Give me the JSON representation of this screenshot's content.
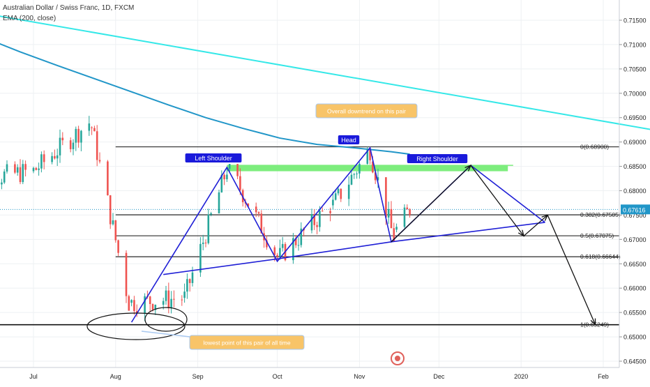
{
  "header": {
    "symbol_title": "Australian Dollar / Swiss Franc, 1D, FXCM",
    "indicator": "EMA (200, close)"
  },
  "colors": {
    "background": "#ffffff",
    "grid": "#eef0f3",
    "candle_up": "#26a69a",
    "candle_down": "#ef5350",
    "ema": "#2196c8",
    "trendline": "#35e8e8",
    "pattern_lines": "#1f1fd6",
    "projection": "#111111",
    "neckline_zone": "#7ded7d",
    "label_bg": "#1a1adb",
    "note_bg": "#f8c468",
    "note_border": "#a8c8f0",
    "last_price_bg": "#2196c8"
  },
  "chart_data": {
    "type": "candlestick",
    "title": "Australian Dollar / Swiss Franc, 1D, FXCM",
    "x_axis": {
      "ticks": [
        "Jul",
        "Aug",
        "Sep",
        "Oct",
        "Nov",
        "Dec",
        "2020",
        "Feb"
      ]
    },
    "y_axis": {
      "range": [
        0.644,
        0.7175
      ],
      "ticks": [
        "0.71500",
        "0.71000",
        "0.70500",
        "0.70000",
        "0.69500",
        "0.69000",
        "0.68500",
        "0.68000",
        "0.67500",
        "0.67000",
        "0.66500",
        "0.66000",
        "0.65500",
        "0.65000",
        "0.64500"
      ]
    },
    "last_price": "0.67616",
    "ema_200": {
      "name": "EMA (200, close)",
      "points": [
        [
          "Jun 12",
          0.7115
        ],
        [
          "Jun 26",
          0.7085
        ],
        [
          "Jul 10",
          0.7057
        ],
        [
          "Jul 24",
          0.703
        ],
        [
          "Aug 7",
          0.7003
        ],
        [
          "Aug 21",
          0.6976
        ],
        [
          "Sep 4",
          0.695
        ],
        [
          "Sep 18",
          0.6928
        ],
        [
          "Oct 2",
          0.6908
        ],
        [
          "Oct 16",
          0.6895
        ],
        [
          "Oct 30",
          0.6888
        ],
        [
          "Nov 13",
          0.688
        ],
        [
          "Nov 20",
          0.6875
        ]
      ]
    },
    "long_trendline": [
      [
        "Jun 6",
        0.717
      ],
      [
        "Feb 26",
        0.6919
      ]
    ],
    "fibonacci": [
      {
        "label": "0(0.68900)",
        "value": 0.689
      },
      {
        "label": "0.382(0.67505)",
        "value": 0.67505
      },
      {
        "label": "0.5(0.67075)",
        "value": 0.67075
      },
      {
        "label": "0.618(0.66644)",
        "value": 0.66644
      },
      {
        "label": "1(0.65249)",
        "value": 0.65249
      }
    ],
    "support_level": 0.6525,
    "pattern_labels": [
      "Left Shoulder",
      "Head",
      "Right Shoulder"
    ],
    "annotations": [
      "Overall downtrend on this pair",
      "lowest point of this pair of all time"
    ],
    "candles_ohlc_segments": [
      {
        "from": "Jun 6",
        "to": "Jun 30",
        "start": 0.682,
        "end": 0.684,
        "hi": 0.688,
        "lo": 0.677
      },
      {
        "from": "Jul 1",
        "to": "Jul 22",
        "start": 0.684,
        "end": 0.694,
        "hi": 0.6955,
        "lo": 0.68
      },
      {
        "from": "Jul 23",
        "to": "Aug 6",
        "start": 0.693,
        "end": 0.657,
        "hi": 0.6955,
        "lo": 0.654
      },
      {
        "from": "Aug 7",
        "to": "Aug 26",
        "start": 0.657,
        "end": 0.658,
        "hi": 0.665,
        "lo": 0.651
      },
      {
        "from": "Aug 27",
        "to": "Sep 12",
        "start": 0.658,
        "end": 0.6845,
        "hi": 0.6855,
        "lo": 0.656
      },
      {
        "from": "Sep 13",
        "to": "Oct 1",
        "start": 0.6845,
        "end": 0.6665,
        "hi": 0.6855,
        "lo": 0.6655
      },
      {
        "from": "Oct 2",
        "to": "Oct 21",
        "start": 0.6665,
        "end": 0.677,
        "hi": 0.6795,
        "lo": 0.665
      },
      {
        "from": "Oct 22",
        "to": "Nov 5",
        "start": 0.677,
        "end": 0.6885,
        "hi": 0.689,
        "lo": 0.674
      },
      {
        "from": "Nov 6",
        "to": "Nov 14",
        "start": 0.686,
        "end": 0.67,
        "hi": 0.6875,
        "lo": 0.6695
      },
      {
        "from": "Nov 15",
        "to": "Nov 20",
        "start": 0.672,
        "end": 0.6762,
        "hi": 0.6772,
        "lo": 0.671
      }
    ],
    "head_shoulders_path": [
      [
        "Aug 7",
        0.653
      ],
      [
        "Sep 12",
        0.6848
      ],
      [
        "Oct 1",
        0.6655
      ],
      [
        "Nov 5",
        0.6888
      ],
      [
        "Nov 13",
        0.6695
      ],
      [
        "Dec 13",
        0.6852
      ],
      [
        "Jan 10",
        0.6735
      ]
    ],
    "neckline": [
      [
        "Aug 19",
        0.6628
      ],
      [
        "Oct 1",
        0.666
      ],
      [
        "Nov 13",
        0.6695
      ],
      [
        "Jan 10",
        0.6735
      ]
    ],
    "projection_path": [
      [
        "Nov 13",
        0.6695
      ],
      [
        "Dec 13",
        0.6852
      ],
      [
        "Jan 2",
        0.6707
      ],
      [
        "Jan 11",
        0.675
      ],
      [
        "Jan 29",
        0.6525
      ]
    ]
  }
}
